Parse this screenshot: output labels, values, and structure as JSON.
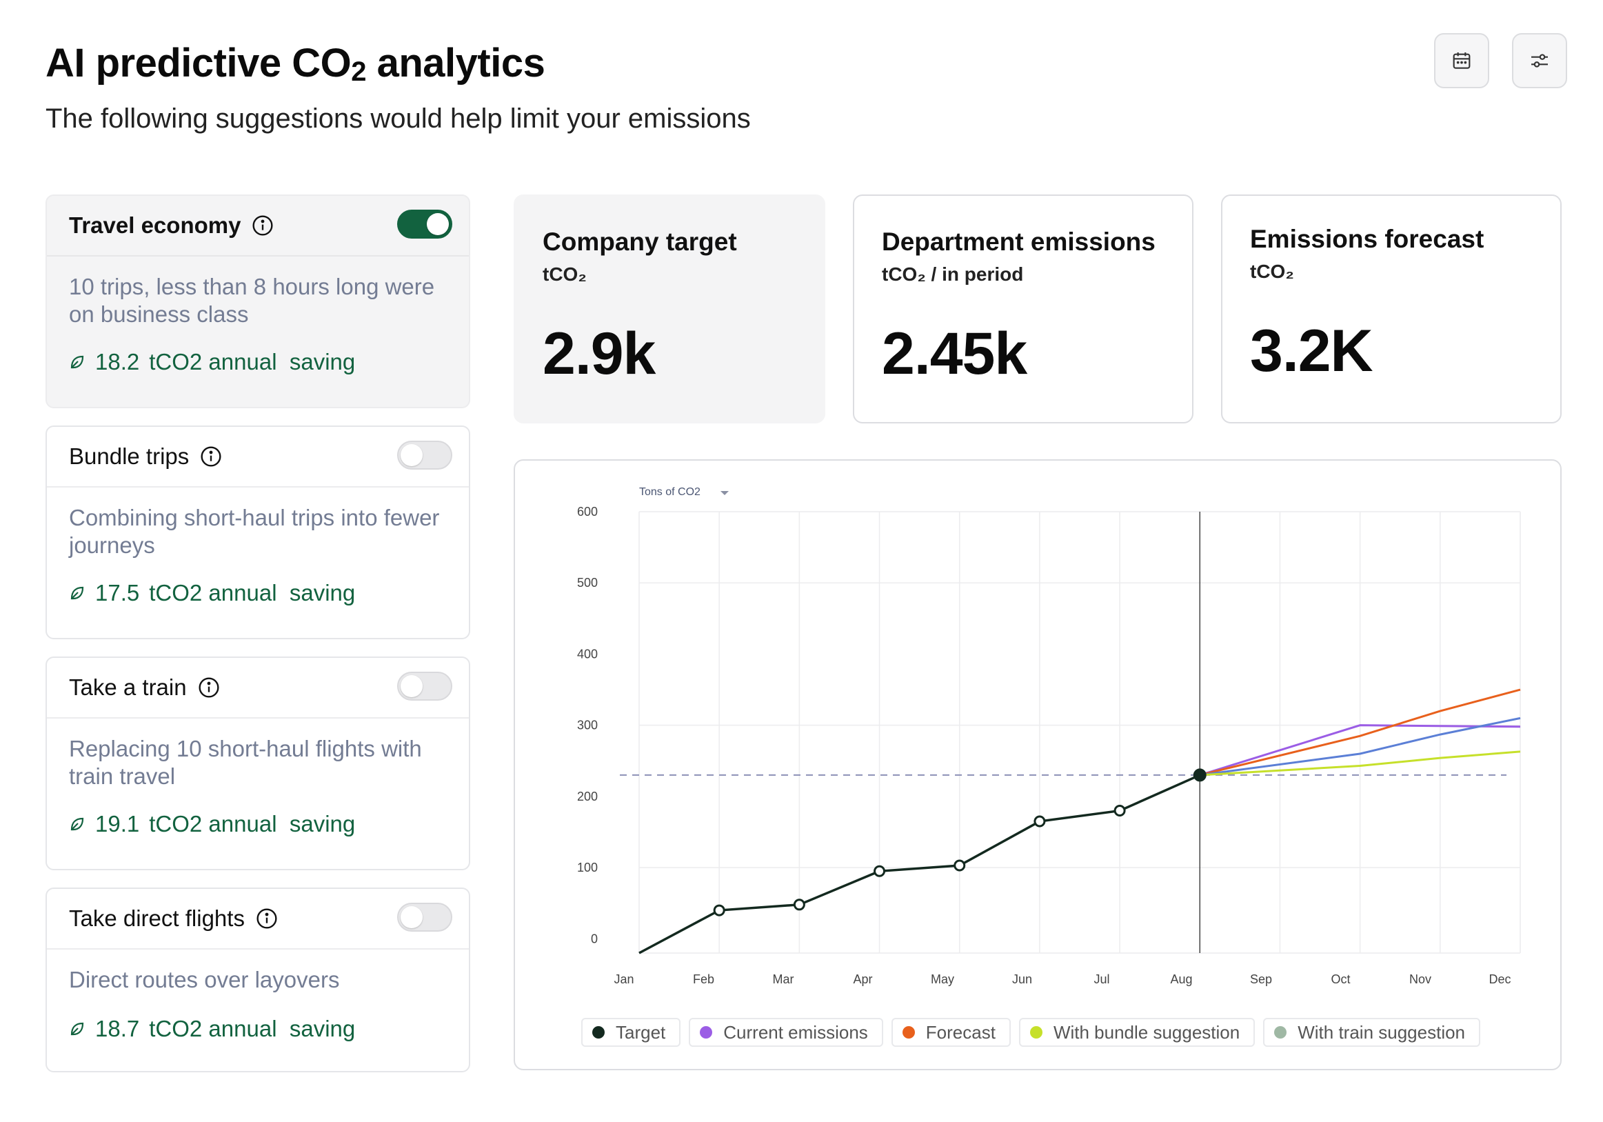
{
  "header": {
    "title_main": "AI predictive CO",
    "title_sub": "2",
    "title_rest": " analytics",
    "subtitle": "The following suggestions would help limit your emissions",
    "calendar_icon": "calendar-icon",
    "filter_icon": "sliders-icon"
  },
  "suggestions": [
    {
      "title": "Travel economy",
      "enabled": true,
      "description": "10 trips, less than 8 hours long were on business class",
      "saving_value": "18.2",
      "saving_label": "tCO2 annual  saving"
    },
    {
      "title": "Bundle trips",
      "enabled": false,
      "description": "Combining short-haul trips into fewer journeys",
      "saving_value": "17.5",
      "saving_label": "tCO2 annual  saving"
    },
    {
      "title": "Take a train",
      "enabled": false,
      "description": "Replacing 10 short-haul flights with train travel",
      "saving_value": "19.1",
      "saving_label": "tCO2 annual  saving"
    },
    {
      "title": "Take direct flights",
      "enabled": false,
      "description": "Direct routes over layovers",
      "saving_value": "18.7",
      "saving_label": "tCO2 annual  saving"
    }
  ],
  "metrics": [
    {
      "title": "Company target",
      "unit": "tCO₂",
      "value": "2.9k"
    },
    {
      "title": "Department emissions",
      "unit": "tCO₂ / in period",
      "value": "2.45k"
    },
    {
      "title": "Emissions forecast",
      "unit": "tCO₂",
      "value": "3.2K"
    }
  ],
  "colors": {
    "accent_green": "#12623f",
    "target": "#13291f",
    "current": "#9b5de5",
    "forecast": "#e8601c",
    "bundle": "#c6e02a",
    "train": "#9fb8a4",
    "blue_line": "#5b7fd6"
  },
  "chart_data": {
    "type": "line",
    "dropdown_label": "Tons of CO2",
    "x": [
      "Jan",
      "Feb",
      "Mar",
      "Apr",
      "May",
      "Jun",
      "Jul",
      "Aug",
      "Sep",
      "Oct",
      "Nov",
      "Dec"
    ],
    "y_ticks": [
      0,
      100,
      200,
      300,
      400,
      500,
      600
    ],
    "ylim": [
      -20,
      600
    ],
    "target_line": 230,
    "actual": [
      {
        "x": "Jan",
        "y": -20
      },
      {
        "x": "Feb",
        "y": 40
      },
      {
        "x": "Mar",
        "y": 48
      },
      {
        "x": "Apr",
        "y": 95
      },
      {
        "x": "May",
        "y": 103
      },
      {
        "x": "Jun",
        "y": 165
      },
      {
        "x": "Jul",
        "y": 180
      },
      {
        "x": "Aug",
        "y": 230
      }
    ],
    "projections": [
      {
        "color_key": "current",
        "points": [
          230,
          300,
          299,
          298
        ],
        "x": [
          "Aug",
          "Oct",
          "Nov",
          "Dec"
        ]
      },
      {
        "color_key": "forecast",
        "points": [
          230,
          285,
          320,
          350
        ],
        "x": [
          "Aug",
          "Oct",
          "Nov",
          "Dec"
        ]
      },
      {
        "color_key": "blue_line",
        "points": [
          230,
          260,
          287,
          310
        ],
        "x": [
          "Aug",
          "Oct",
          "Nov",
          "Dec"
        ]
      },
      {
        "color_key": "bundle",
        "points": [
          230,
          243,
          254,
          263
        ],
        "x": [
          "Aug",
          "Oct",
          "Nov",
          "Dec"
        ]
      }
    ],
    "legend": [
      {
        "label": "Target",
        "color_key": "target"
      },
      {
        "label": "Current emissions",
        "color_key": "current"
      },
      {
        "label": "Forecast",
        "color_key": "forecast"
      },
      {
        "label": "With bundle suggestion",
        "color_key": "bundle"
      },
      {
        "label": "With train suggestion",
        "color_key": "train"
      }
    ],
    "grid": true,
    "legend_position": "bottom"
  }
}
